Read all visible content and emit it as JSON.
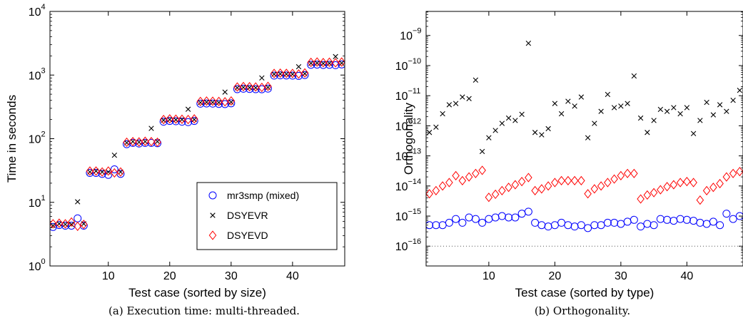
{
  "chart_data": [
    {
      "type": "scatter",
      "caption": "(a)  Execution time: multi-threaded.",
      "xlabel": "Test case (sorted by size)",
      "ylabel": "Time in seconds",
      "xlim": [
        0.5,
        48.5
      ],
      "ylim": [
        1,
        10000
      ],
      "yscale": "log",
      "xticks": [
        10,
        20,
        30,
        40
      ],
      "yticks": [
        {
          "base": "10",
          "exp": "0"
        },
        {
          "base": "10",
          "exp": "1"
        },
        {
          "base": "10",
          "exp": "2"
        },
        {
          "base": "10",
          "exp": "3"
        },
        {
          "base": "10",
          "exp": "4"
        }
      ],
      "legend": {
        "position": "lower-right"
      },
      "series": [
        {
          "name": "mr3smp (mixed)",
          "marker": "circle",
          "color": "#0000ff",
          "x": [
            1,
            2,
            3,
            4,
            5,
            6,
            7,
            8,
            9,
            10,
            11,
            12,
            13,
            14,
            15,
            16,
            17,
            18,
            19,
            20,
            21,
            22,
            23,
            24,
            25,
            26,
            27,
            28,
            29,
            30,
            31,
            32,
            33,
            34,
            35,
            36,
            37,
            38,
            39,
            40,
            41,
            42,
            43,
            44,
            45,
            46,
            47,
            48
          ],
          "y": [
            4.1,
            4.4,
            4.3,
            4.3,
            5.6,
            4.3,
            29,
            29,
            28,
            27,
            33,
            28,
            82,
            86,
            84,
            86,
            86,
            85,
            185,
            190,
            188,
            185,
            182,
            190,
            355,
            358,
            356,
            352,
            350,
            360,
            600,
            610,
            605,
            600,
            598,
            612,
            980,
            990,
            985,
            980,
            970,
            1000,
            1450,
            1460,
            1440,
            1450,
            1430,
            1470
          ]
        },
        {
          "name": "DSYEVR",
          "marker": "x",
          "color": "#000000",
          "x": [
            1,
            2,
            3,
            4,
            5,
            6,
            7,
            8,
            9,
            10,
            11,
            12,
            13,
            14,
            15,
            16,
            17,
            18,
            19,
            20,
            21,
            22,
            23,
            24,
            25,
            26,
            27,
            28,
            29,
            30,
            31,
            32,
            33,
            34,
            35,
            36,
            37,
            38,
            39,
            40,
            41,
            42,
            43,
            44,
            45,
            46,
            47,
            48
          ],
          "y": [
            4.3,
            4.6,
            4.5,
            4.5,
            10.2,
            4.6,
            30,
            31,
            30,
            30,
            55,
            30,
            86,
            90,
            88,
            90,
            145,
            90,
            195,
            200,
            198,
            200,
            290,
            200,
            370,
            375,
            372,
            370,
            540,
            375,
            630,
            640,
            635,
            630,
            900,
            640,
            1030,
            1040,
            1035,
            1030,
            1350,
            1050,
            1530,
            1540,
            1520,
            1530,
            1950,
            1540
          ]
        },
        {
          "name": "DSYEVD",
          "marker": "diamond",
          "color": "#ff0000",
          "x": [
            1,
            2,
            3,
            4,
            5,
            6,
            7,
            8,
            9,
            10,
            11,
            12,
            13,
            14,
            15,
            16,
            17,
            18,
            19,
            20,
            21,
            22,
            23,
            24,
            25,
            26,
            27,
            28,
            29,
            30,
            31,
            32,
            33,
            34,
            35,
            36,
            37,
            38,
            39,
            40,
            41,
            42,
            43,
            44,
            45,
            46,
            47,
            48
          ],
          "y": [
            4.6,
            4.7,
            4.6,
            4.9,
            4.2,
            4.5,
            31,
            31,
            30,
            31,
            29,
            30,
            88,
            90,
            89,
            91,
            90,
            88,
            200,
            205,
            203,
            202,
            200,
            205,
            385,
            390,
            388,
            385,
            380,
            392,
            650,
            660,
            655,
            650,
            640,
            665,
            1060,
            1070,
            1065,
            1060,
            1040,
            1080,
            1580,
            1600,
            1570,
            1590,
            1560,
            1600
          ]
        }
      ]
    },
    {
      "type": "scatter",
      "caption": "(b)  Orthogonality.",
      "xlabel": "Test case (sorted by type)",
      "ylabel": "Orthogonality",
      "xlim": [
        0.5,
        48.5
      ],
      "ylim": [
        2.2e-17,
        6.3e-09
      ],
      "yscale": "log",
      "xticks": [
        10,
        20,
        30,
        40
      ],
      "yticks": [
        {
          "base": "10",
          "exp": "−16"
        },
        {
          "base": "10",
          "exp": "−15"
        },
        {
          "base": "10",
          "exp": "−14"
        },
        {
          "base": "10",
          "exp": "−13"
        },
        {
          "base": "10",
          "exp": "−12"
        },
        {
          "base": "10",
          "exp": "−11"
        },
        {
          "base": "10",
          "exp": "−10"
        },
        {
          "base": "10",
          "exp": "−9"
        }
      ],
      "reference_line": {
        "y": 1e-16,
        "style": "dotted"
      },
      "series": [
        {
          "name": "mr3smp (mixed)",
          "marker": "circle",
          "color": "#0000ff",
          "x": [
            1,
            2,
            3,
            4,
            5,
            6,
            7,
            8,
            9,
            10,
            11,
            12,
            13,
            14,
            15,
            16,
            17,
            18,
            19,
            20,
            21,
            22,
            23,
            24,
            25,
            26,
            27,
            28,
            29,
            30,
            31,
            32,
            33,
            34,
            35,
            36,
            37,
            38,
            39,
            40,
            41,
            42,
            43,
            44,
            45,
            46,
            47,
            48
          ],
          "y": [
            5e-16,
            5e-16,
            5e-16,
            6e-16,
            8e-16,
            6e-16,
            9e-16,
            8e-16,
            6e-16,
            8e-16,
            9e-16,
            1e-15,
            9e-16,
            9e-16,
            1.2e-15,
            1.4e-15,
            6e-16,
            5e-16,
            4.5e-16,
            5e-16,
            6e-16,
            5e-16,
            4.5e-16,
            5e-16,
            4e-16,
            5e-16,
            5e-16,
            6e-16,
            6e-16,
            5.5e-16,
            6.5e-16,
            7.5e-16,
            4.5e-16,
            5.5e-16,
            5e-16,
            8e-16,
            7.5e-16,
            7e-16,
            8e-16,
            7.5e-16,
            7e-16,
            6e-16,
            5.5e-16,
            6.5e-16,
            5e-16,
            1.2e-15,
            8e-16,
            1e-15
          ]
        },
        {
          "name": "DSYEVR",
          "marker": "x",
          "color": "#000000",
          "x": [
            1,
            2,
            3,
            4,
            5,
            6,
            7,
            8,
            9,
            10,
            11,
            12,
            13,
            14,
            15,
            16,
            17,
            18,
            19,
            20,
            21,
            22,
            23,
            24,
            25,
            26,
            27,
            28,
            29,
            30,
            31,
            32,
            33,
            34,
            35,
            36,
            37,
            38,
            39,
            40,
            41,
            42,
            43,
            44,
            45,
            46,
            47,
            48
          ],
          "y": [
            6e-13,
            9e-13,
            2.5e-12,
            5e-12,
            5.5e-12,
            9e-12,
            8e-12,
            3.3e-11,
            1.4e-13,
            4e-13,
            7e-13,
            1.2e-12,
            1.8e-12,
            1.5e-12,
            2.4e-12,
            5.5e-10,
            6e-13,
            5e-13,
            8e-13,
            5.5e-12,
            2.5e-12,
            6.5e-12,
            4.5e-12,
            9e-12,
            4e-13,
            1.2e-12,
            3e-12,
            1.1e-11,
            4e-12,
            4.5e-12,
            5.5e-12,
            4.5e-11,
            1.8e-12,
            6e-13,
            1.5e-12,
            3.5e-12,
            3e-12,
            4e-12,
            2.5e-12,
            4e-12,
            5.5e-13,
            1.5e-12,
            6e-12,
            2.3e-12,
            5e-12,
            3e-12,
            7e-12,
            1.5e-11
          ]
        },
        {
          "name": "DSYEVD",
          "marker": "diamond",
          "color": "#ff0000",
          "x": [
            1,
            2,
            3,
            4,
            5,
            6,
            7,
            8,
            9,
            10,
            11,
            12,
            13,
            14,
            15,
            16,
            17,
            18,
            19,
            20,
            21,
            22,
            23,
            24,
            25,
            26,
            27,
            28,
            29,
            30,
            31,
            32,
            33,
            34,
            35,
            36,
            37,
            38,
            39,
            40,
            41,
            42,
            43,
            44,
            45,
            46,
            47,
            48
          ],
          "y": [
            5.5e-15,
            7e-15,
            1e-14,
            1.3e-14,
            2.2e-14,
            1.5e-14,
            2e-14,
            2.6e-14,
            3.3e-14,
            4.2e-15,
            5.3e-15,
            7e-15,
            9e-15,
            1.1e-14,
            1.4e-14,
            1.9e-14,
            7e-15,
            8e-15,
            1e-14,
            1.3e-14,
            1.5e-14,
            1.5e-14,
            1.5e-14,
            1.5e-14,
            5.5e-15,
            8e-15,
            1e-14,
            1.3e-14,
            1.7e-14,
            2.2e-14,
            2.6e-14,
            2.6e-14,
            3.7e-15,
            5e-15,
            6e-15,
            7.5e-15,
            9.5e-15,
            1.1e-14,
            1.3e-14,
            1.4e-14,
            1.3e-14,
            3.4e-15,
            7e-15,
            9e-15,
            1.2e-14,
            2e-14,
            2.6e-14,
            3e-14
          ]
        }
      ]
    }
  ]
}
